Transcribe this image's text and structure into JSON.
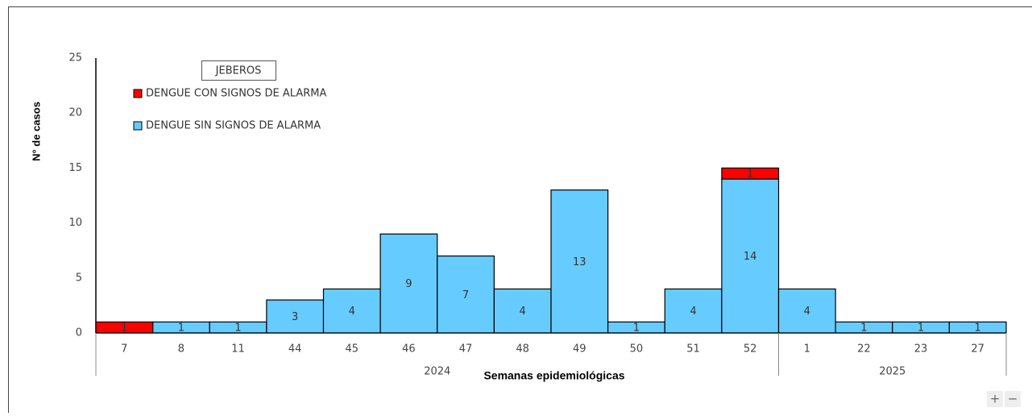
{
  "chart_data": {
    "type": "stacked_bar",
    "annotation": "JEBEROS",
    "y_label": "N° de casos",
    "x_label": "Semanas epidemiológicas",
    "categories": [
      "7",
      "8",
      "11",
      "44",
      "45",
      "46",
      "47",
      "48",
      "49",
      "50",
      "51",
      "52",
      "1",
      "22",
      "23",
      "27"
    ],
    "groups": [
      {
        "label": "2024",
        "span": 12
      },
      {
        "label": "2025",
        "span": 4
      }
    ],
    "series": [
      {
        "name": "DENGUE SIN SIGNOS DE ALARMA",
        "color": "#66ccff",
        "values": [
          null,
          1,
          1,
          3,
          4,
          9,
          7,
          4,
          13,
          1,
          4,
          14,
          4,
          1,
          1,
          1
        ]
      },
      {
        "name": "DENGUE CON SIGNOS DE ALARMA",
        "color": "#ff0000",
        "values": [
          1,
          null,
          null,
          null,
          null,
          null,
          null,
          null,
          null,
          null,
          null,
          1,
          null,
          null,
          null,
          null
        ]
      }
    ],
    "ylim": [
      0,
      25
    ],
    "yticks": [
      0,
      5,
      10,
      15,
      20,
      25
    ],
    "controls": [
      "+",
      "−"
    ]
  }
}
